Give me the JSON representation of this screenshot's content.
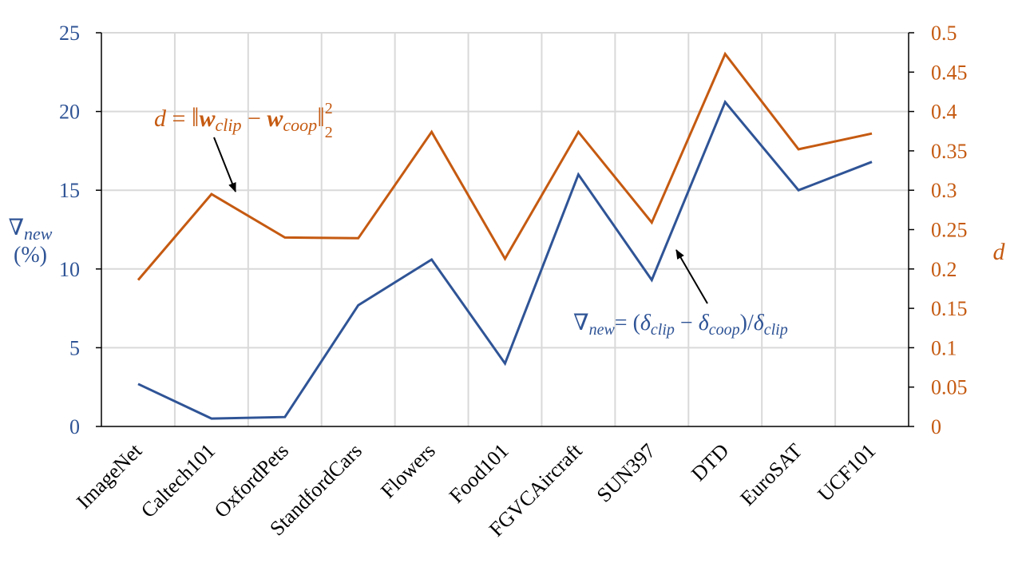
{
  "chart_data": {
    "type": "line",
    "categories": [
      "ImageNet",
      "Caltech101",
      "OxfordPets",
      "StandfordCars",
      "Flowers",
      "Food101",
      "FGVCAircraft",
      "SUN397",
      "DTD",
      "EuroSAT",
      "UCF101"
    ],
    "grid": true,
    "y_left": {
      "label_line1": "∇new",
      "label_line2": "(%)",
      "ylim": [
        0,
        25
      ],
      "ticks": [
        "0",
        "5",
        "10",
        "15",
        "20",
        "25"
      ]
    },
    "y_right": {
      "label": "d",
      "ylim": [
        0,
        0.5
      ],
      "ticks": [
        "0",
        "0.05",
        "0.1",
        "0.15",
        "0.2",
        "0.25",
        "0.3",
        "0.35",
        "0.4",
        "0.45",
        "0.5"
      ]
    },
    "series": [
      {
        "axis": "left",
        "color": "#2f5496",
        "values": [
          2.7,
          0.5,
          0.6,
          7.7,
          10.6,
          4.0,
          16.0,
          9.3,
          20.6,
          15.0,
          16.8
        ]
      },
      {
        "axis": "right",
        "color": "#c55a11",
        "values": [
          0.186,
          0.295,
          0.24,
          0.239,
          0.374,
          0.213,
          0.374,
          0.259,
          0.473,
          0.352,
          0.372
        ]
      }
    ],
    "annotations": {
      "d_formula": "d = ‖wclip − wcoop‖²₂",
      "nabla_formula": "∇new= (δclip − δcoop)/δclip"
    }
  }
}
